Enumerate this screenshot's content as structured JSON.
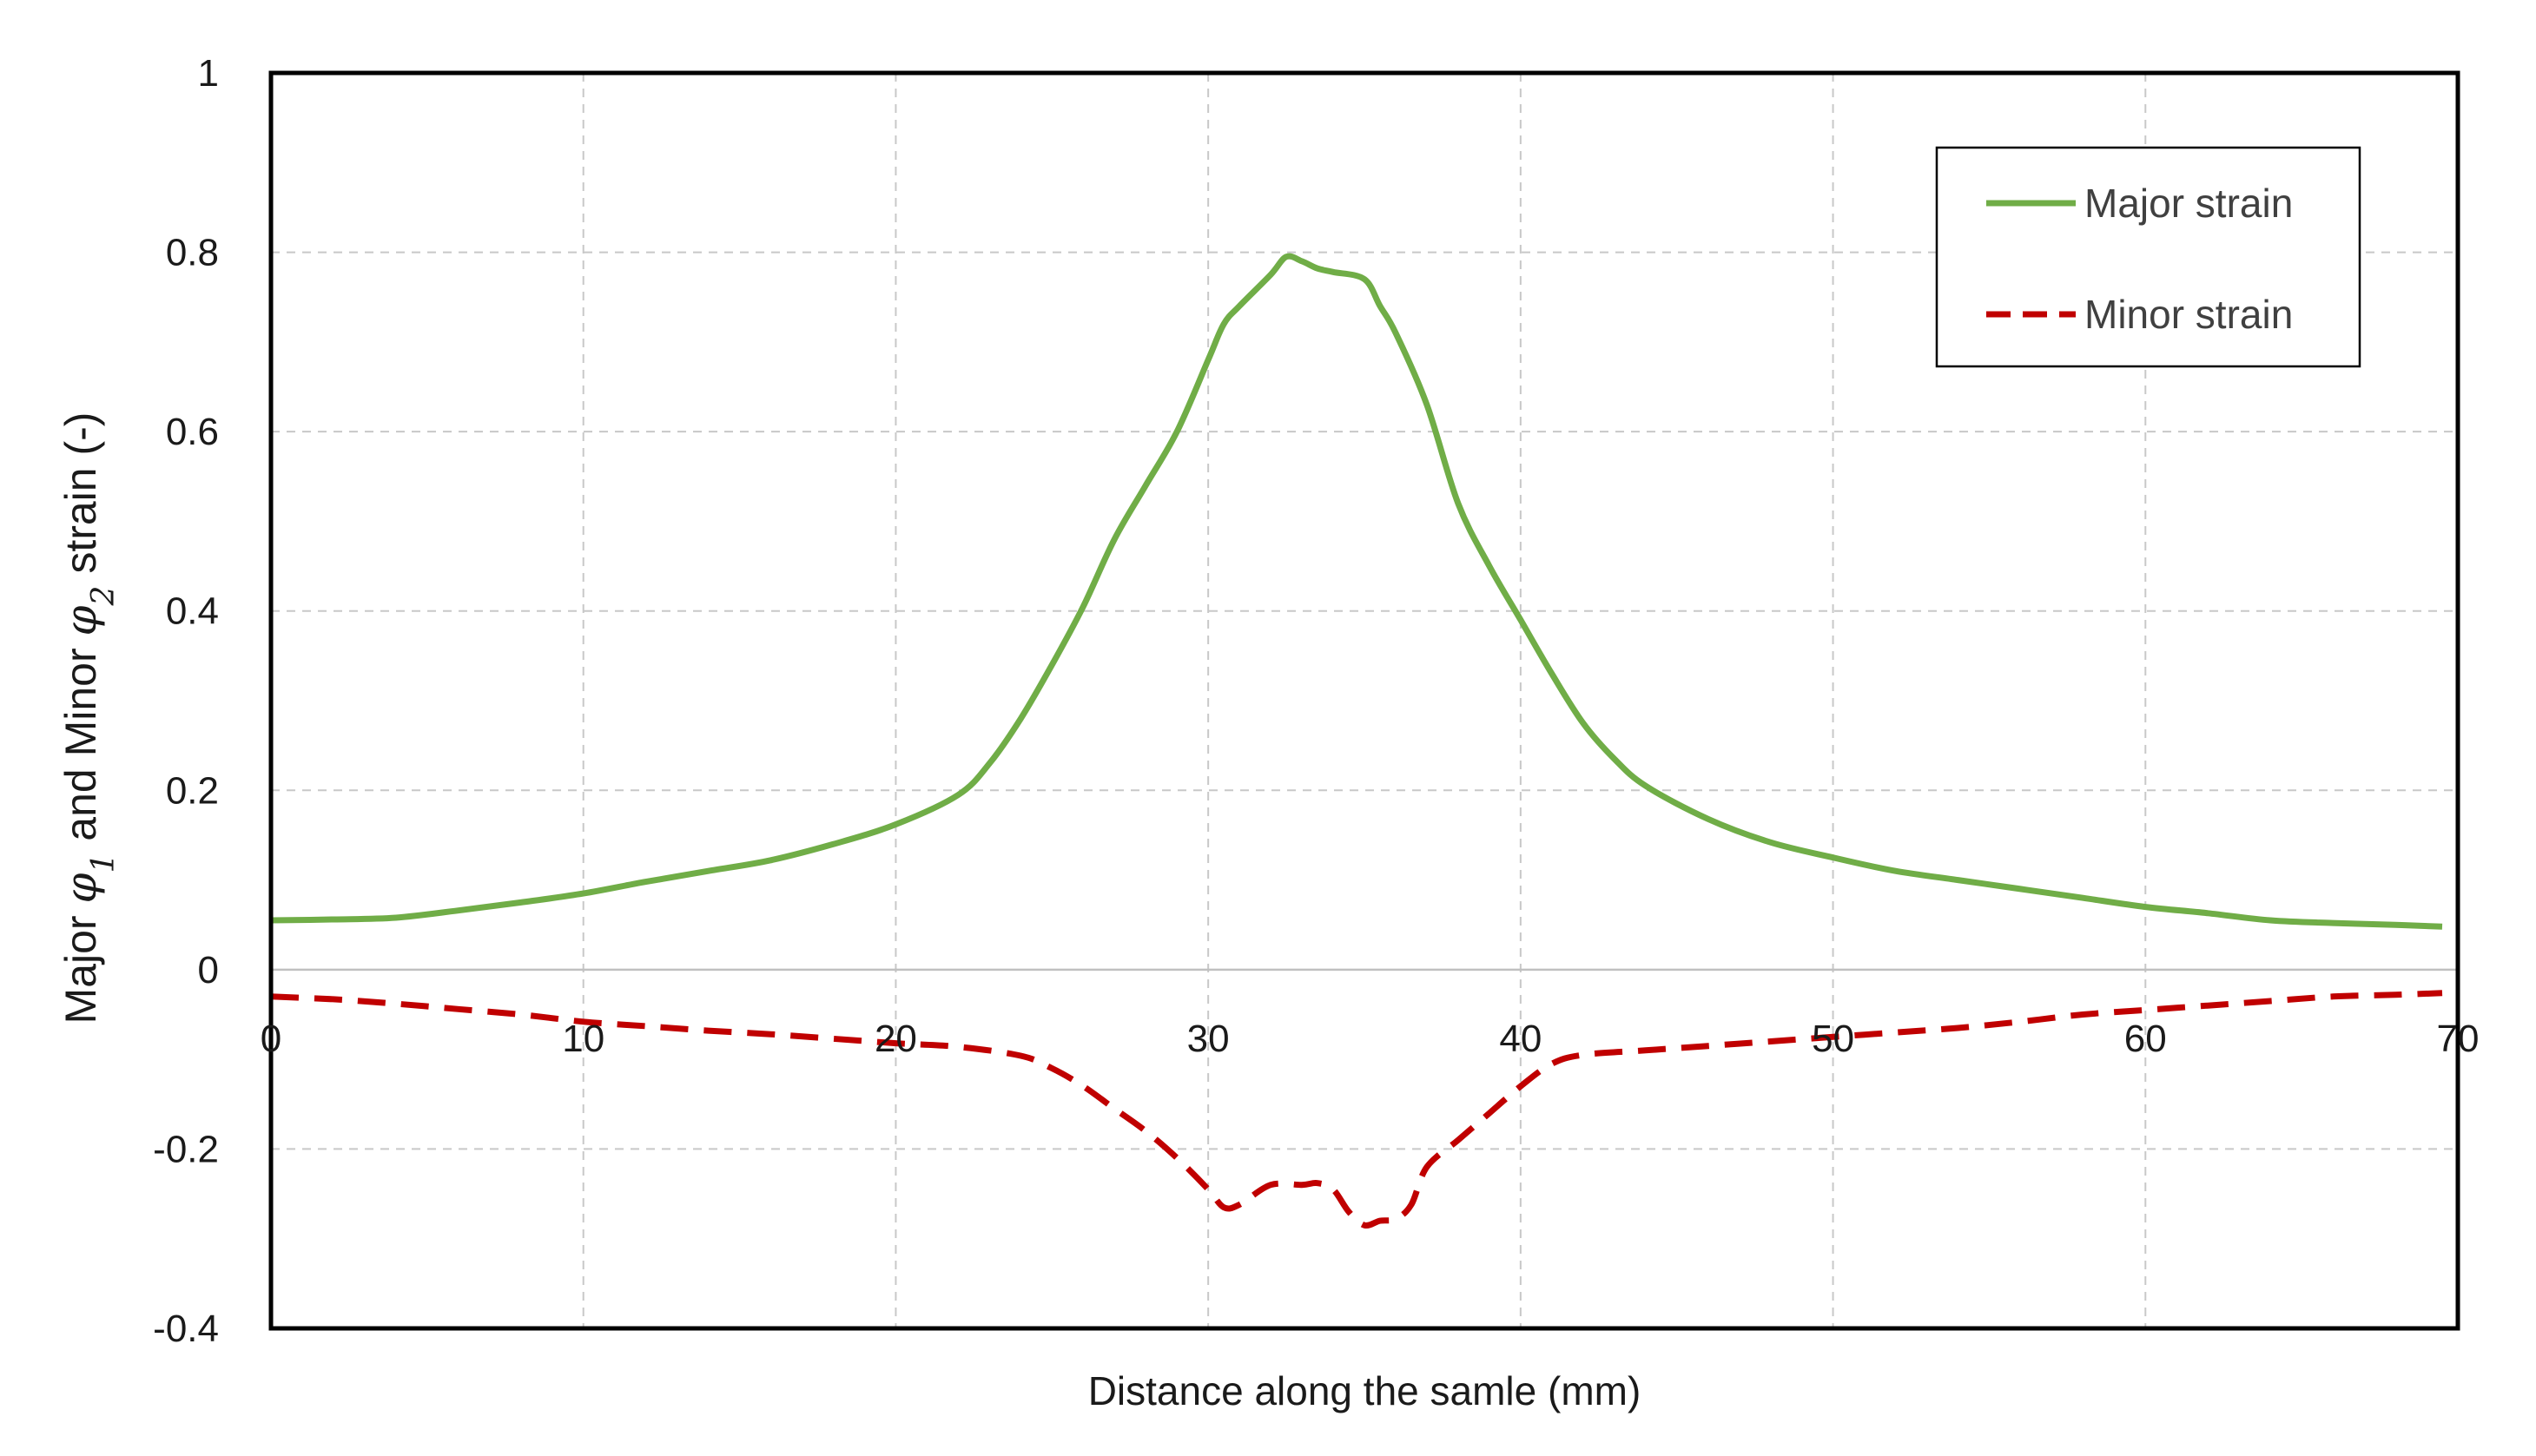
{
  "chart_data": {
    "type": "line",
    "title": "",
    "xlabel": "Distance along  the samle (mm)",
    "ylabel": {
      "p1": "Major ",
      "s1": "φ",
      "sub1": "1",
      "p2": " and Minor ",
      "s2": "φ",
      "sub2": "2",
      "p3": " strain (-)"
    },
    "xlim": [
      0,
      70
    ],
    "ylim": [
      -0.4,
      1
    ],
    "xticks": [
      0,
      10,
      20,
      30,
      40,
      50,
      60,
      70
    ],
    "xtick_labels": [
      "0",
      "10",
      "20",
      "30",
      "40",
      "50",
      "60",
      "70"
    ],
    "yticks": [
      -0.4,
      -0.2,
      0,
      0.2,
      0.4,
      0.6,
      0.8,
      1
    ],
    "ytick_labels": [
      "-0.4",
      "-0.2",
      "0",
      "0.2",
      "0.4",
      "0.6",
      "0.8",
      "1"
    ],
    "grid": true,
    "legend_position": "top-right",
    "series": [
      {
        "name": "Major strain",
        "color": "#70ad47",
        "style": "solid",
        "x": [
          0,
          2,
          4,
          6,
          8,
          10,
          12,
          14,
          16,
          18,
          20,
          22,
          23,
          24,
          25,
          26,
          27,
          28,
          29,
          30,
          30.5,
          31,
          32,
          32.5,
          33,
          33.5,
          34,
          35,
          35.5,
          36,
          37,
          38,
          39,
          40,
          41,
          42,
          43,
          44,
          46,
          48,
          50,
          52,
          54,
          56,
          58,
          60,
          62,
          64,
          66,
          68,
          69.5
        ],
        "y": [
          0.055,
          0.056,
          0.058,
          0.066,
          0.075,
          0.085,
          0.098,
          0.11,
          0.122,
          0.14,
          0.162,
          0.195,
          0.23,
          0.28,
          0.34,
          0.405,
          0.48,
          0.54,
          0.6,
          0.68,
          0.72,
          0.74,
          0.775,
          0.795,
          0.79,
          0.782,
          0.778,
          0.77,
          0.74,
          0.71,
          0.63,
          0.52,
          0.45,
          0.39,
          0.33,
          0.275,
          0.235,
          0.205,
          0.168,
          0.142,
          0.125,
          0.11,
          0.1,
          0.09,
          0.08,
          0.07,
          0.063,
          0.055,
          0.052,
          0.05,
          0.048
        ]
      },
      {
        "name": "Minor strain",
        "color": "#c00000",
        "style": "dashed",
        "x": [
          0,
          2,
          4,
          6,
          8,
          10,
          12,
          14,
          16,
          18,
          20,
          22,
          24,
          25,
          26,
          27,
          28,
          29,
          30,
          30.5,
          31,
          32,
          33,
          33.5,
          34,
          34.5,
          35,
          35.5,
          36,
          36.5,
          37,
          38,
          39,
          40,
          41,
          42,
          44,
          46,
          48,
          50,
          52,
          54,
          56,
          58,
          60,
          62,
          64,
          66,
          68,
          69.5
        ],
        "y": [
          -0.03,
          -0.033,
          -0.038,
          -0.044,
          -0.05,
          -0.058,
          -0.063,
          -0.068,
          -0.072,
          -0.077,
          -0.082,
          -0.086,
          -0.096,
          -0.11,
          -0.13,
          -0.155,
          -0.18,
          -0.21,
          -0.245,
          -0.265,
          -0.262,
          -0.24,
          -0.24,
          -0.238,
          -0.245,
          -0.27,
          -0.285,
          -0.28,
          -0.278,
          -0.262,
          -0.22,
          -0.19,
          -0.16,
          -0.13,
          -0.105,
          -0.095,
          -0.09,
          -0.085,
          -0.08,
          -0.075,
          -0.07,
          -0.065,
          -0.058,
          -0.05,
          -0.045,
          -0.04,
          -0.035,
          -0.03,
          -0.028,
          -0.026
        ]
      }
    ]
  }
}
